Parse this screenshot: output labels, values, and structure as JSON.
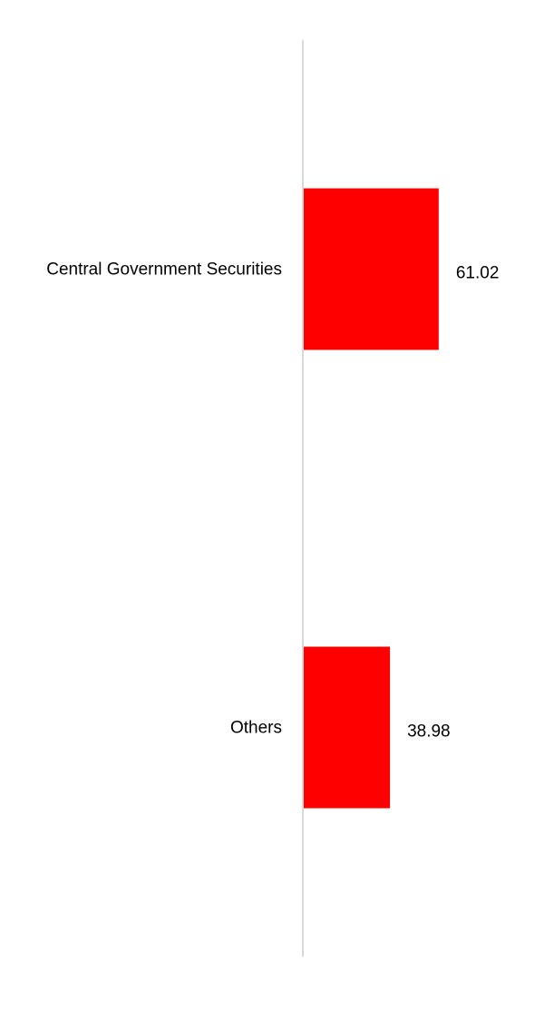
{
  "chart_data": {
    "type": "bar",
    "orientation": "horizontal",
    "categories": [
      "Central Government Securities",
      "Others"
    ],
    "values": [
      61.02,
      38.98
    ],
    "data_labels": [
      "61.02",
      "38.98"
    ],
    "title": "",
    "xlabel": "",
    "ylabel": "",
    "xlim": [
      0,
      110
    ],
    "grid": false,
    "legend": "none",
    "colors": {
      "bar": "#ff0000",
      "axis": "#d9d9d9",
      "text": "#000000"
    }
  }
}
